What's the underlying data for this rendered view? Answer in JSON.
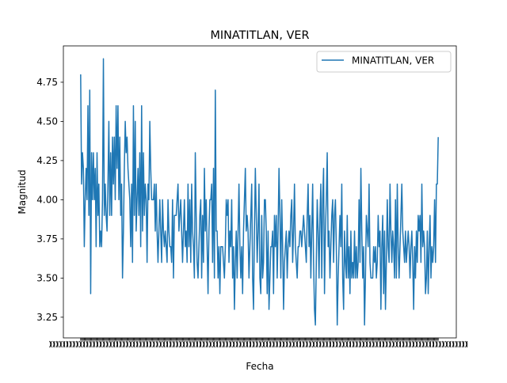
{
  "chart_data": {
    "type": "line",
    "title": "MINATITLAN, VER",
    "xlabel": "Fecha",
    "ylabel": "Magnitud",
    "ylim": [
      3.118,
      4.982
    ],
    "y_ticks": [
      3.25,
      3.5,
      3.75,
      4.0,
      4.25,
      4.5,
      4.75
    ],
    "y_tick_labels": [
      "3.25",
      "3.50",
      "3.75",
      "4.00",
      "4.25",
      "4.50",
      "4.75"
    ],
    "x_tick_labels_overlap": true,
    "grid": false,
    "legend": {
      "position": "top-right"
    },
    "colors": {
      "line": "#1f77b4"
    },
    "series": [
      {
        "name": "MINATITLAN, VER",
        "values": [
          4.8,
          4.1,
          4.3,
          4.2,
          3.7,
          4.0,
          4.2,
          4.0,
          4.6,
          3.9,
          4.7,
          3.4,
          4.3,
          4.0,
          4.3,
          4.0,
          4.2,
          3.7,
          4.3,
          3.9,
          4.1,
          3.7,
          3.8,
          3.7,
          4.0,
          4.9,
          3.9,
          4.1,
          3.9,
          3.8,
          4.1,
          4.5,
          3.9,
          4.3,
          3.9,
          4.4,
          4.1,
          4.4,
          4.0,
          4.6,
          4.2,
          4.6,
          4.0,
          4.4,
          3.9,
          4.1,
          3.5,
          3.8,
          4.2,
          4.5,
          4.3,
          4.4,
          4.2,
          4.1,
          4.0,
          3.7,
          4.1,
          3.6,
          4.6,
          3.9,
          4.5,
          3.8,
          4.0,
          4.2,
          3.9,
          4.3,
          3.7,
          4.6,
          3.8,
          4.3,
          3.9,
          4.1,
          4.0,
          3.6,
          4.1,
          4.0,
          4.5,
          4.2,
          4.0,
          4.0,
          4.0,
          4.1,
          3.8,
          4.1,
          3.8,
          3.6,
          3.8,
          4.0,
          3.8,
          3.6,
          4.0,
          3.8,
          3.7,
          3.8,
          3.7,
          3.6,
          4.0,
          3.8,
          3.7,
          3.7,
          3.6,
          4.0,
          3.5,
          3.9,
          3.9,
          3.9,
          4.0,
          4.1,
          3.8,
          3.9,
          4.0,
          3.8,
          3.6,
          3.8,
          4.0,
          3.7,
          3.8,
          3.6,
          4.1,
          3.7,
          4.0,
          3.6,
          4.1,
          3.8,
          3.7,
          3.5,
          4.3,
          3.9,
          3.6,
          3.5,
          3.7,
          3.9,
          4.0,
          3.5,
          3.9,
          3.6,
          4.2,
          3.8,
          4.0,
          3.7,
          3.4,
          3.8,
          4.0,
          4.0,
          4.1,
          3.6,
          4.2,
          3.5,
          4.7,
          3.8,
          3.8,
          3.5,
          3.7,
          3.4,
          3.7,
          3.7,
          3.7,
          3.6,
          3.5,
          3.7,
          4.0,
          3.9,
          4.0,
          3.6,
          3.8,
          3.7,
          4.0,
          3.5,
          3.7,
          3.3,
          3.6,
          3.8,
          3.5,
          3.8,
          4.1,
          3.7,
          3.5,
          3.7,
          3.4,
          3.8,
          4.0,
          4.2,
          3.8,
          3.9,
          3.8,
          3.5,
          3.7,
          3.9,
          4.1,
          3.5,
          3.3,
          3.8,
          4.2,
          3.9,
          3.6,
          3.8,
          4.1,
          3.5,
          3.4,
          3.9,
          3.5,
          3.6,
          4.0,
          4.0,
          3.8,
          3.4,
          3.8,
          3.3,
          3.5,
          3.7,
          3.7,
          3.8,
          3.4,
          3.9,
          3.7,
          3.9,
          3.5,
          3.8,
          4.2,
          3.9,
          3.5,
          4.0,
          3.7,
          3.3,
          3.6,
          3.7,
          3.8,
          3.5,
          3.7,
          3.8,
          3.7,
          3.9,
          4.0,
          3.6,
          3.8,
          4.1,
          3.7,
          3.6,
          3.5,
          3.7,
          3.7,
          3.8,
          3.8,
          3.7,
          3.8,
          3.9,
          3.8,
          3.7,
          3.6,
          3.9,
          4.1,
          3.7,
          3.9,
          3.5,
          3.8,
          4.1,
          3.6,
          3.3,
          3.2,
          3.6,
          4.0,
          3.8,
          3.5,
          3.9,
          4.1,
          3.5,
          4.0,
          4.2,
          3.4,
          3.8,
          4.0,
          4.3,
          3.7,
          3.8,
          3.5,
          3.7,
          3.9,
          4.0,
          3.6,
          3.9,
          4.0,
          3.7,
          3.2,
          3.5,
          3.7,
          3.9,
          3.7,
          4.1,
          3.5,
          3.3,
          3.8,
          3.6,
          3.5,
          3.9,
          3.5,
          3.7,
          3.4,
          3.8,
          3.5,
          3.6,
          3.5,
          3.8,
          3.5,
          3.7,
          3.5,
          3.6,
          4.0,
          3.6,
          4.2,
          3.8,
          3.5,
          3.7,
          3.2,
          3.5,
          3.9,
          3.8,
          3.7,
          4.1,
          3.6,
          3.5,
          3.5,
          3.5,
          3.7,
          3.6,
          3.7,
          3.5,
          3.6,
          3.9,
          3.7,
          3.8,
          3.3,
          3.7,
          3.9,
          3.4,
          3.8,
          3.3,
          3.6,
          4.0,
          3.7,
          3.6,
          4.1,
          3.8,
          3.6,
          3.8,
          3.7,
          3.5,
          4.0,
          3.5,
          4.1,
          3.7,
          3.5,
          3.7,
          3.9,
          4.1,
          3.8,
          3.7,
          3.6,
          3.8,
          3.6,
          3.7,
          3.8,
          3.7,
          3.5,
          3.7,
          3.8,
          3.6,
          3.3,
          3.7,
          3.5,
          3.8,
          3.6,
          3.9,
          3.8,
          3.9,
          3.6,
          4.1,
          3.7,
          3.8,
          3.7,
          3.4,
          3.5,
          3.8,
          3.4,
          3.7,
          3.9,
          3.5,
          3.7,
          3.6,
          3.7,
          4.0,
          3.6,
          4.1,
          4.1,
          4.4
        ]
      }
    ]
  }
}
